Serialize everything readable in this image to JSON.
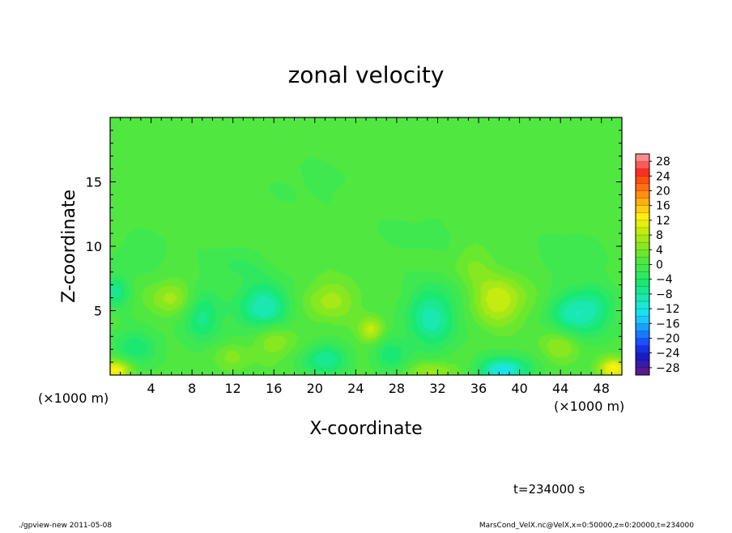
{
  "chart_data": {
    "type": "heatmap",
    "title": "zonal velocity",
    "xlabel": "X-coordinate",
    "ylabel": "Z-coordinate",
    "x_unit_left": "(×1000 m)",
    "x_unit_right": "(×1000 m)",
    "xlim": [
      0,
      50
    ],
    "ylim": [
      0,
      20
    ],
    "x_ticks": [
      4,
      8,
      12,
      16,
      20,
      24,
      28,
      32,
      36,
      40,
      44,
      48
    ],
    "y_ticks": [
      5,
      10,
      15
    ],
    "colorbar": {
      "levels": [
        -30,
        -28,
        -26,
        -24,
        -22,
        -20,
        -18,
        -16,
        -14,
        -12,
        -10,
        -8,
        -6,
        -4,
        -2,
        0,
        2,
        4,
        6,
        8,
        10,
        12,
        14,
        16,
        18,
        20,
        22,
        24,
        26,
        28,
        30
      ],
      "labels": [
        "28",
        "24",
        "20",
        "16",
        "12",
        "8",
        "4",
        "0",
        "−4",
        "−8",
        "−12",
        "−16",
        "−20",
        "−24",
        "−28"
      ],
      "colors": [
        "#5a1a8c",
        "#3a1aa8",
        "#1a1ac8",
        "#1a30e0",
        "#1a50ff",
        "#1a78ff",
        "#1aa0ff",
        "#1ac8ff",
        "#1ae0f0",
        "#1ae8d0",
        "#1ae8b0",
        "#1ae890",
        "#1ae870",
        "#30e860",
        "#40e850",
        "#50e840",
        "#6ae830",
        "#88e820",
        "#a6e818",
        "#c4ec10",
        "#e2f010",
        "#fff010",
        "#ffd010",
        "#ffb010",
        "#ff9010",
        "#ff7010",
        "#ff5010",
        "#ff3020",
        "#ff5a5a",
        "#ff8c8c"
      ]
    },
    "anomalies": [
      {
        "x": 0.5,
        "z": 0.4,
        "v": 12,
        "sx": 1.5,
        "sz": 0.8
      },
      {
        "x": 49.2,
        "z": 0.5,
        "v": 12,
        "sx": 1.5,
        "sz": 0.8
      },
      {
        "x": 31.5,
        "z": 0.3,
        "v": 6,
        "sx": 2.5,
        "sz": 0.8
      },
      {
        "x": 38.5,
        "z": 0.4,
        "v": -14,
        "sx": 2.5,
        "sz": 1.0
      },
      {
        "x": 21.0,
        "z": 1.2,
        "v": -9,
        "sx": 2.2,
        "sz": 1.2
      },
      {
        "x": 2.5,
        "z": 2.2,
        "v": -6,
        "sx": 2.5,
        "sz": 1.5
      },
      {
        "x": 0.5,
        "z": 6.5,
        "v": -8,
        "sx": 1.5,
        "sz": 1.2
      },
      {
        "x": 6.0,
        "z": 6.0,
        "v": 6,
        "sx": 2.0,
        "sz": 1.3
      },
      {
        "x": 9.0,
        "z": 4.5,
        "v": -8,
        "sx": 1.8,
        "sz": 2.0
      },
      {
        "x": 15.0,
        "z": 5.2,
        "v": -11,
        "sx": 2.6,
        "sz": 2.0
      },
      {
        "x": 16.0,
        "z": 2.8,
        "v": 6,
        "sx": 2.0,
        "sz": 1.5
      },
      {
        "x": 12.0,
        "z": 1.5,
        "v": 4,
        "sx": 1.5,
        "sz": 1.0
      },
      {
        "x": 21.5,
        "z": 5.8,
        "v": 6,
        "sx": 2.5,
        "sz": 1.5
      },
      {
        "x": 25.5,
        "z": 3.5,
        "v": 8,
        "sx": 1.2,
        "sz": 1.0
      },
      {
        "x": 27.5,
        "z": 1.5,
        "v": -6,
        "sx": 1.8,
        "sz": 1.5
      },
      {
        "x": 31.5,
        "z": 4.5,
        "v": -10,
        "sx": 2.5,
        "sz": 2.5
      },
      {
        "x": 38.0,
        "z": 5.8,
        "v": 9,
        "sx": 2.5,
        "sz": 1.8
      },
      {
        "x": 35.5,
        "z": 8.5,
        "v": 3,
        "sx": 2.0,
        "sz": 1.5
      },
      {
        "x": 44.0,
        "z": 2.2,
        "v": 5,
        "sx": 1.8,
        "sz": 1.2
      },
      {
        "x": 47.0,
        "z": 5.0,
        "v": -9,
        "sx": 2.2,
        "sz": 2.0
      },
      {
        "x": 44.5,
        "z": 4.8,
        "v": -7,
        "sx": 2.0,
        "sz": 1.5
      },
      {
        "x": 12.0,
        "z": 8.5,
        "v": -3,
        "sx": 3.0,
        "sz": 1.5
      },
      {
        "x": 30.0,
        "z": 11.0,
        "v": -2,
        "sx": 4.0,
        "sz": 1.5
      },
      {
        "x": 45.0,
        "z": 9.5,
        "v": -3,
        "sx": 3.0,
        "sz": 1.5
      },
      {
        "x": 3.0,
        "z": 9.5,
        "v": -3,
        "sx": 2.5,
        "sz": 1.5
      },
      {
        "x": 20.0,
        "z": 15.0,
        "v": -1.5,
        "sx": 5.0,
        "sz": 2.0
      }
    ]
  },
  "time_label": "t=234000 s",
  "footer_left": "./gpview-new   2011-05-08",
  "footer_right": "MarsCond_VelX.nc@VelX,x=0:50000,z=0:20000,t=234000"
}
